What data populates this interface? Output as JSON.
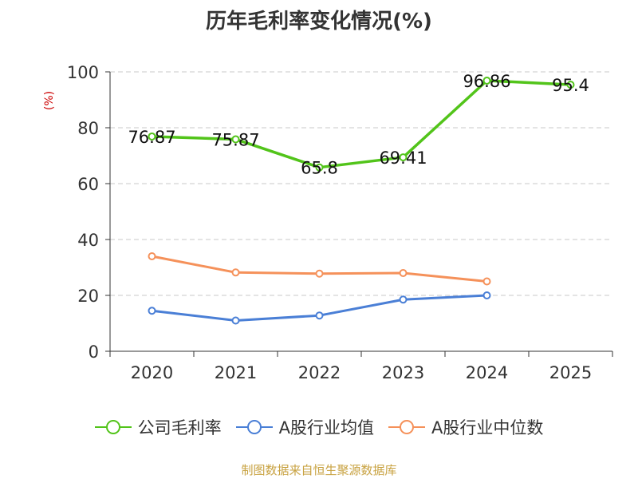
{
  "chart_data": {
    "type": "line",
    "title": "历年毛利率变化情况(%)",
    "ylabel": "(%)",
    "categories": [
      "2020",
      "2021",
      "2022",
      "2023",
      "2024",
      "2025"
    ],
    "ylim": [
      0,
      100
    ],
    "yticks": [
      0,
      20,
      40,
      60,
      80,
      100
    ],
    "grid": true,
    "legend_position": "bottom",
    "series": [
      {
        "name": "公司毛利率",
        "color": "#52c41a",
        "values": [
          76.87,
          75.87,
          65.8,
          69.41,
          96.86,
          95.4
        ],
        "labels": [
          "76.87",
          "75.87",
          "65.8",
          "69.41",
          "96.86",
          "95.4"
        ]
      },
      {
        "name": "A股行业均值",
        "color": "#4a7fd6",
        "values": [
          14.5,
          11.0,
          12.8,
          18.5,
          20.0,
          null
        ]
      },
      {
        "name": "A股行业中位数",
        "color": "#f5915a",
        "values": [
          34.0,
          28.2,
          27.8,
          28.0,
          25.0,
          null
        ]
      }
    ]
  },
  "footer": "制图数据来自恒生聚源数据库"
}
